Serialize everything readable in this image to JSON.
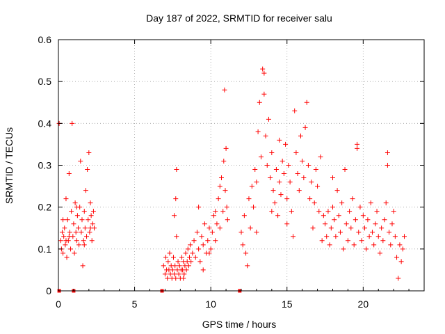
{
  "chart_data": {
    "type": "scatter",
    "title": "Day 187 of 2022, SRMTID for receiver salu",
    "xlabel": "GPS time / hours",
    "ylabel": "SRMTID / TECUs",
    "xlim": [
      0,
      24
    ],
    "ylim": [
      0,
      0.6
    ],
    "xticks": [
      {
        "value": 0,
        "label": "0"
      },
      {
        "value": 5,
        "label": "5"
      },
      {
        "value": 10,
        "label": "10"
      },
      {
        "value": 15,
        "label": "15"
      },
      {
        "value": 20,
        "label": "20"
      }
    ],
    "yticks": [
      {
        "value": 0,
        "label": "0"
      },
      {
        "value": 0.1,
        "label": "0.1"
      },
      {
        "value": 0.2,
        "label": "0.2"
      },
      {
        "value": 0.3,
        "label": "0.3"
      },
      {
        "value": 0.4,
        "label": "0.4"
      },
      {
        "value": 0.5,
        "label": "0.5"
      },
      {
        "value": 0.6,
        "label": "0.6"
      }
    ],
    "grid": true,
    "marker": "+",
    "color": "#ff0000",
    "zero_markers": [
      0.05,
      1.0,
      6.8,
      11.9
    ],
    "series": [
      {
        "name": "salu",
        "points": [
          [
            0.05,
            0.4
          ],
          [
            0.15,
            0.12
          ],
          [
            0.2,
            0.1
          ],
          [
            0.25,
            0.14
          ],
          [
            0.3,
            0.09
          ],
          [
            0.35,
            0.13
          ],
          [
            0.4,
            0.15
          ],
          [
            0.45,
            0.11
          ],
          [
            0.5,
            0.22
          ],
          [
            0.55,
            0.08
          ],
          [
            0.6,
            0.17
          ],
          [
            0.65,
            0.12
          ],
          [
            0.7,
            0.28
          ],
          [
            0.75,
            0.14
          ],
          [
            0.8,
            0.1
          ],
          [
            0.85,
            0.19
          ],
          [
            0.9,
            0.4
          ],
          [
            0.95,
            0.13
          ],
          [
            1.0,
            0.16
          ],
          [
            1.05,
            0.09
          ],
          [
            1.1,
            0.21
          ],
          [
            1.15,
            0.14
          ],
          [
            1.2,
            0.12
          ],
          [
            1.25,
            0.18
          ],
          [
            1.3,
            0.15
          ],
          [
            1.35,
            0.11
          ],
          [
            1.4,
            0.2
          ],
          [
            1.45,
            0.31
          ],
          [
            1.5,
            0.14
          ],
          [
            1.55,
            0.17
          ],
          [
            1.6,
            0.06
          ],
          [
            1.65,
            0.12
          ],
          [
            1.7,
            0.19
          ],
          [
            1.75,
            0.15
          ],
          [
            1.8,
            0.24
          ],
          [
            1.85,
            0.13
          ],
          [
            1.9,
            0.29
          ],
          [
            1.95,
            0.17
          ],
          [
            2.0,
            0.33
          ],
          [
            2.05,
            0.14
          ],
          [
            2.1,
            0.21
          ],
          [
            2.15,
            0.18
          ],
          [
            2.2,
            0.12
          ],
          [
            2.25,
            0.16
          ],
          [
            2.3,
            0.19
          ],
          [
            2.35,
            0.15
          ],
          [
            0.3,
            0.17
          ],
          [
            0.5,
            0.12
          ],
          [
            0.7,
            0.13
          ],
          [
            1.2,
            0.2
          ],
          [
            1.7,
            0.11
          ],
          [
            2.1,
            0.15
          ],
          [
            6.9,
            0.06
          ],
          [
            7.0,
            0.04
          ],
          [
            7.05,
            0.08
          ],
          [
            7.1,
            0.05
          ],
          [
            7.15,
            0.03
          ],
          [
            7.2,
            0.07
          ],
          [
            7.25,
            0.05
          ],
          [
            7.3,
            0.09
          ],
          [
            7.35,
            0.04
          ],
          [
            7.4,
            0.06
          ],
          [
            7.45,
            0.03
          ],
          [
            7.5,
            0.05
          ],
          [
            7.55,
            0.08
          ],
          [
            7.6,
            0.04
          ],
          [
            7.65,
            0.06
          ],
          [
            7.7,
            0.03
          ],
          [
            7.75,
            0.29
          ],
          [
            7.8,
            0.05
          ],
          [
            7.85,
            0.07
          ],
          [
            7.9,
            0.04
          ],
          [
            7.95,
            0.06
          ],
          [
            8.0,
            0.03
          ],
          [
            8.05,
            0.05
          ],
          [
            8.1,
            0.08
          ],
          [
            8.15,
            0.05
          ],
          [
            8.2,
            0.07
          ],
          [
            8.25,
            0.04
          ],
          [
            8.3,
            0.06
          ],
          [
            8.35,
            0.09
          ],
          [
            8.4,
            0.05
          ],
          [
            8.45,
            0.07
          ],
          [
            8.5,
            0.1
          ],
          [
            8.55,
            0.06
          ],
          [
            8.6,
            0.08
          ],
          [
            8.65,
            0.11
          ],
          [
            8.7,
            0.07
          ],
          [
            7.7,
            0.22
          ],
          [
            7.75,
            0.13
          ],
          [
            7.6,
            0.18
          ],
          [
            8.2,
            0.03
          ],
          [
            8.8,
            0.09
          ],
          [
            8.9,
            0.12
          ],
          [
            9.0,
            0.08
          ],
          [
            9.1,
            0.14
          ],
          [
            9.2,
            0.1
          ],
          [
            9.3,
            0.07
          ],
          [
            9.4,
            0.13
          ],
          [
            9.5,
            0.11
          ],
          [
            9.6,
            0.16
          ],
          [
            9.7,
            0.09
          ],
          [
            9.8,
            0.12
          ],
          [
            9.9,
            0.15
          ],
          [
            10.0,
            0.1
          ],
          [
            10.1,
            0.14
          ],
          [
            10.2,
            0.18
          ],
          [
            10.3,
            0.12
          ],
          [
            10.4,
            0.16
          ],
          [
            10.5,
            0.22
          ],
          [
            10.6,
            0.15
          ],
          [
            10.7,
            0.27
          ],
          [
            10.8,
            0.19
          ],
          [
            10.85,
            0.31
          ],
          [
            10.9,
            0.48
          ],
          [
            10.95,
            0.24
          ],
          [
            11.0,
            0.34
          ],
          [
            11.05,
            0.2
          ],
          [
            11.1,
            0.17
          ],
          [
            9.2,
            0.2
          ],
          [
            9.5,
            0.05
          ],
          [
            9.9,
            0.09
          ],
          [
            10.3,
            0.19
          ],
          [
            10.6,
            0.25
          ],
          [
            12.0,
            0.14
          ],
          [
            12.1,
            0.11
          ],
          [
            12.2,
            0.18
          ],
          [
            12.3,
            0.09
          ],
          [
            12.4,
            0.06
          ],
          [
            12.5,
            0.22
          ],
          [
            12.6,
            0.15
          ],
          [
            12.7,
            0.25
          ],
          [
            12.8,
            0.2
          ],
          [
            12.9,
            0.29
          ],
          [
            13.0,
            0.26
          ],
          [
            13.1,
            0.38
          ],
          [
            13.2,
            0.45
          ],
          [
            13.3,
            0.32
          ],
          [
            13.4,
            0.53
          ],
          [
            13.5,
            0.47
          ],
          [
            13.6,
            0.37
          ],
          [
            13.7,
            0.3
          ],
          [
            13.8,
            0.41
          ],
          [
            13.9,
            0.27
          ],
          [
            14.0,
            0.33
          ],
          [
            14.1,
            0.24
          ],
          [
            14.2,
            0.21
          ],
          [
            14.3,
            0.29
          ],
          [
            14.4,
            0.18
          ],
          [
            14.5,
            0.26
          ],
          [
            14.6,
            0.23
          ],
          [
            14.7,
            0.31
          ],
          [
            14.8,
            0.28
          ],
          [
            14.9,
            0.35
          ],
          [
            15.0,
            0.22
          ],
          [
            15.1,
            0.3
          ],
          [
            15.2,
            0.26
          ],
          [
            15.3,
            0.19
          ],
          [
            15.4,
            0.13
          ],
          [
            15.5,
            0.43
          ],
          [
            15.6,
            0.33
          ],
          [
            15.7,
            0.28
          ],
          [
            15.8,
            0.24
          ],
          [
            15.9,
            0.37
          ],
          [
            16.0,
            0.31
          ],
          [
            16.1,
            0.27
          ],
          [
            16.2,
            0.39
          ],
          [
            16.3,
            0.45
          ],
          [
            16.4,
            0.3
          ],
          [
            16.5,
            0.22
          ],
          [
            16.6,
            0.26
          ],
          [
            16.7,
            0.15
          ],
          [
            16.8,
            0.21
          ],
          [
            16.9,
            0.29
          ],
          [
            17.0,
            0.25
          ],
          [
            17.1,
            0.19
          ],
          [
            17.2,
            0.32
          ],
          [
            17.3,
            0.12
          ],
          [
            17.4,
            0.18
          ],
          [
            13.0,
            0.14
          ],
          [
            13.5,
            0.52
          ],
          [
            14.0,
            0.19
          ],
          [
            14.5,
            0.36
          ],
          [
            15.0,
            0.16
          ],
          [
            17.5,
            0.16
          ],
          [
            17.6,
            0.13
          ],
          [
            17.7,
            0.19
          ],
          [
            17.8,
            0.11
          ],
          [
            17.9,
            0.15
          ],
          [
            18.0,
            0.2
          ],
          [
            18.1,
            0.17
          ],
          [
            18.2,
            0.13
          ],
          [
            18.3,
            0.24
          ],
          [
            18.4,
            0.18
          ],
          [
            18.5,
            0.14
          ],
          [
            18.6,
            0.21
          ],
          [
            18.7,
            0.1
          ],
          [
            18.8,
            0.29
          ],
          [
            18.9,
            0.16
          ],
          [
            19.0,
            0.12
          ],
          [
            19.1,
            0.19
          ],
          [
            19.2,
            0.15
          ],
          [
            19.3,
            0.22
          ],
          [
            19.4,
            0.11
          ],
          [
            19.5,
            0.17
          ],
          [
            19.6,
            0.35
          ],
          [
            19.7,
            0.14
          ],
          [
            19.8,
            0.2
          ],
          [
            19.9,
            0.12
          ],
          [
            20.0,
            0.18
          ],
          [
            20.1,
            0.15
          ],
          [
            20.2,
            0.1
          ],
          [
            20.3,
            0.17
          ],
          [
            20.4,
            0.13
          ],
          [
            20.5,
            0.21
          ],
          [
            20.6,
            0.14
          ],
          [
            20.7,
            0.11
          ],
          [
            20.8,
            0.16
          ],
          [
            20.9,
            0.19
          ],
          [
            21.0,
            0.13
          ],
          [
            21.1,
            0.09
          ],
          [
            21.2,
            0.15
          ],
          [
            21.3,
            0.12
          ],
          [
            21.4,
            0.17
          ],
          [
            21.5,
            0.21
          ],
          [
            21.6,
            0.33
          ],
          [
            21.7,
            0.14
          ],
          [
            21.8,
            0.11
          ],
          [
            21.9,
            0.16
          ],
          [
            22.0,
            0.19
          ],
          [
            22.1,
            0.13
          ],
          [
            22.2,
            0.08
          ],
          [
            22.3,
            0.03
          ],
          [
            22.4,
            0.11
          ],
          [
            22.5,
            0.07
          ],
          [
            22.6,
            0.1
          ],
          [
            22.7,
            0.13
          ],
          [
            19.6,
            0.34
          ],
          [
            21.6,
            0.3
          ],
          [
            18.0,
            0.27
          ]
        ]
      }
    ]
  }
}
